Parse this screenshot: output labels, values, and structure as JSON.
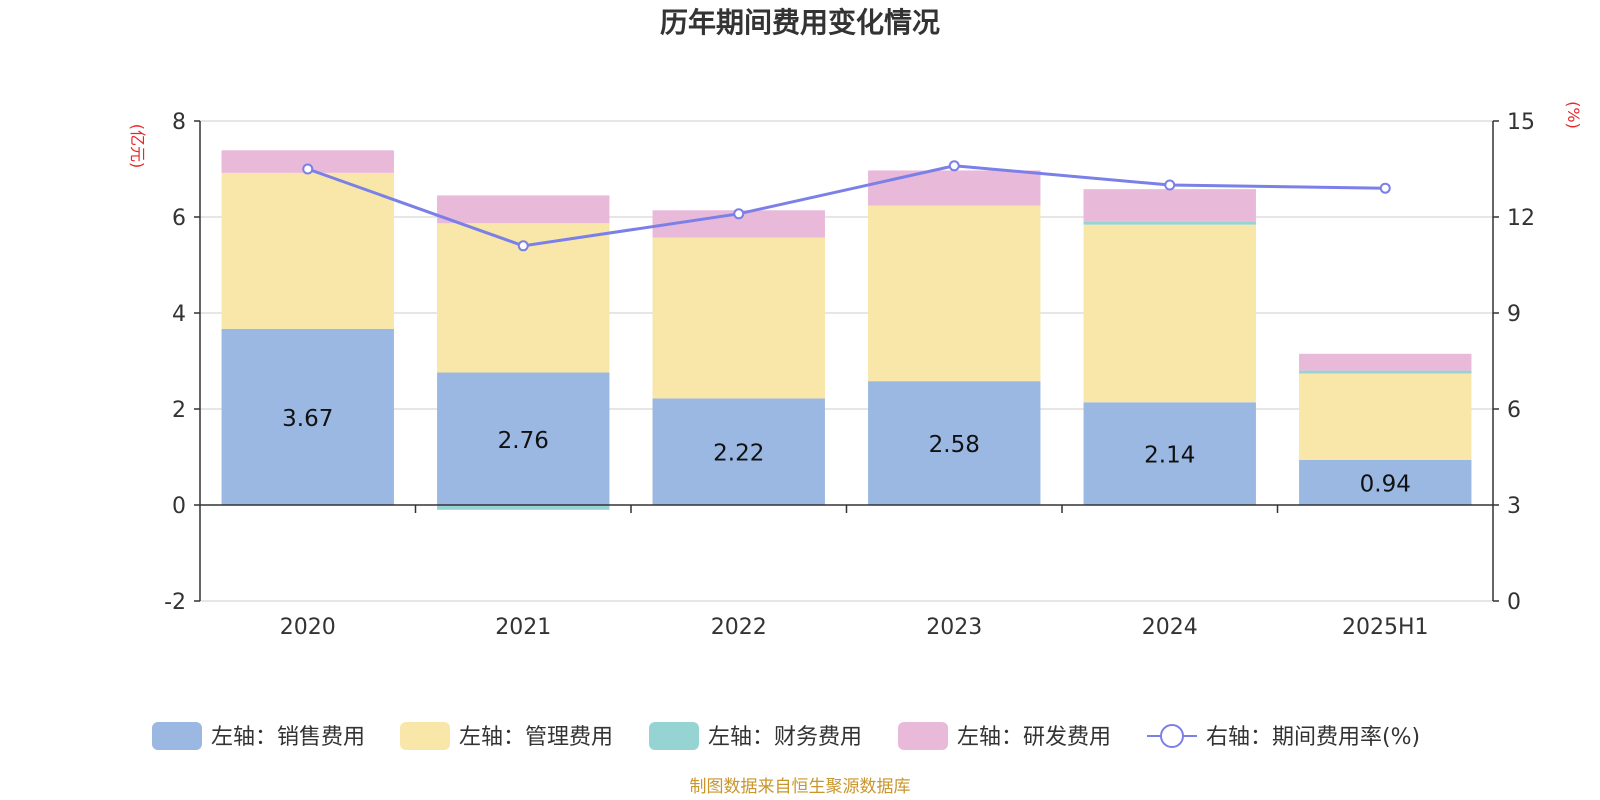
{
  "chart_data": {
    "type": "bar",
    "title": "历年期间费用变化情况",
    "categories": [
      "2020",
      "2021",
      "2022",
      "2023",
      "2024",
      "2025H1"
    ],
    "left_axis": {
      "unit_label": "(亿元)",
      "range": [
        -2,
        8
      ],
      "ticks": [
        "-2",
        "0",
        "2",
        "4",
        "6",
        "8"
      ]
    },
    "right_axis": {
      "unit_label": "(%)",
      "range": [
        0,
        15
      ],
      "ticks": [
        "0",
        "3",
        "6",
        "9",
        "12",
        "15"
      ]
    },
    "series": [
      {
        "name": "左轴：销售费用",
        "kind": "bar",
        "axis": "left",
        "color": "#9bb8e2",
        "values": [
          3.67,
          2.76,
          2.22,
          2.58,
          2.14,
          0.94
        ],
        "data_labels": [
          "3.67",
          "2.76",
          "2.22",
          "2.58",
          "2.14",
          "0.94"
        ]
      },
      {
        "name": "左轴：管理费用",
        "kind": "bar",
        "axis": "left",
        "color": "#f8e7a8",
        "values": [
          3.25,
          3.11,
          3.35,
          3.66,
          3.7,
          1.8
        ]
      },
      {
        "name": "左轴：财务费用",
        "kind": "bar",
        "axis": "left",
        "color": "#96d4d4",
        "values": [
          0.0,
          -0.1,
          0.0,
          0.0,
          0.07,
          0.06
        ]
      },
      {
        "name": "左轴：研发费用",
        "kind": "bar",
        "axis": "left",
        "color": "#e8b9d9",
        "values": [
          0.47,
          0.58,
          0.57,
          0.73,
          0.67,
          0.35
        ]
      },
      {
        "name": "右轴：期间费用率(%)",
        "kind": "line",
        "axis": "right",
        "color": "#7b7fe8",
        "values": [
          13.5,
          11.1,
          12.1,
          13.6,
          13.0,
          12.9
        ]
      }
    ],
    "grid": true,
    "legend_position": "bottom"
  },
  "footer": {
    "source": "制图数据来自恒生聚源数据库"
  }
}
